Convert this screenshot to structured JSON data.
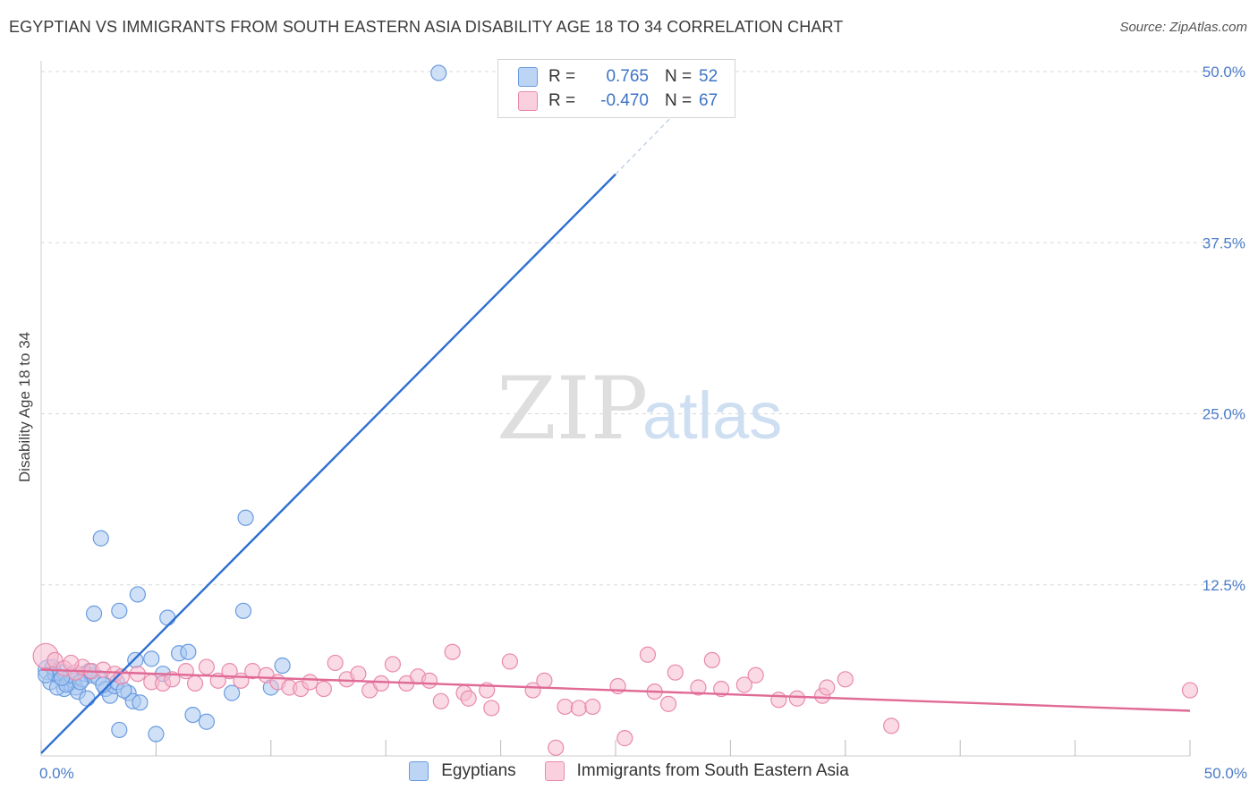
{
  "header": {
    "title": "EGYPTIAN VS IMMIGRANTS FROM SOUTH EASTERN ASIA DISABILITY AGE 18 TO 34 CORRELATION CHART",
    "source": "Source: ZipAtlas.com"
  },
  "watermark": "ZIPatlas",
  "colors": {
    "blue_fill": "#a9c8f0",
    "blue_stroke": "#6a9be0",
    "blue_line": "#2f6fd1",
    "pink_fill": "#f6bcd0",
    "pink_stroke": "#e98aab",
    "pink_line": "#e06a95",
    "grid": "#d9d9d9",
    "tick_text": "#4a7cc9"
  },
  "legend_top": {
    "rows": [
      {
        "r_label": "R =",
        "r_value": "0.765",
        "n_label": "N =",
        "n_value": "52",
        "color": "#a9c8f0",
        "border": "#6a9be0"
      },
      {
        "r_label": "R =",
        "r_value": "-0.470",
        "n_label": "N =",
        "n_value": "67",
        "color": "#f6bcd0",
        "border": "#e98aab"
      }
    ]
  },
  "legend_bottom": [
    {
      "label": "Egyptians",
      "color": "#a9c8f0",
      "border": "#6a9be0"
    },
    {
      "label": "Immigrants from South Eastern Asia",
      "color": "#f6bcd0",
      "border": "#e98aab"
    }
  ],
  "chart_data": {
    "type": "scatter",
    "title": "EGYPTIAN VS IMMIGRANTS FROM SOUTH EASTERN ASIA DISABILITY AGE 18 TO 34 CORRELATION CHART",
    "xlabel": "",
    "ylabel": "Disability Age 18 to 34",
    "xlim": [
      0,
      50
    ],
    "ylim": [
      0,
      50
    ],
    "x_tick_labels": [
      "0.0%",
      "50.0%"
    ],
    "y_tick_labels": [
      "12.5%",
      "25.0%",
      "37.5%",
      "50.0%"
    ],
    "y_ticks": [
      12.5,
      25.0,
      37.5,
      50.0
    ],
    "grid": true,
    "legend_position": "top-center",
    "series": [
      {
        "name": "Egyptians",
        "color": "#a9c8f0",
        "r": 0.765,
        "n": 52,
        "trend": {
          "x": [
            0,
            25
          ],
          "y": [
            0.2,
            42.5
          ],
          "dashed_to": [
            27.5,
            46.8
          ]
        },
        "points": [
          [
            0.3,
            6.3
          ],
          [
            0.4,
            5.4
          ],
          [
            0.6,
            6.0
          ],
          [
            0.8,
            5.8
          ],
          [
            1.0,
            6.1
          ],
          [
            1.0,
            4.9
          ],
          [
            1.2,
            5.3
          ],
          [
            1.4,
            5.5
          ],
          [
            1.5,
            5.0
          ],
          [
            1.6,
            4.7
          ],
          [
            1.8,
            5.6
          ],
          [
            1.9,
            6.0
          ],
          [
            2.0,
            4.2
          ],
          [
            2.2,
            5.9
          ],
          [
            2.5,
            5.7
          ],
          [
            2.6,
            15.9
          ],
          [
            2.8,
            4.9
          ],
          [
            3.0,
            4.4
          ],
          [
            3.2,
            5.1
          ],
          [
            3.3,
            5.4
          ],
          [
            2.3,
            10.4
          ],
          [
            3.4,
            1.9
          ],
          [
            3.4,
            10.6
          ],
          [
            3.8,
            4.6
          ],
          [
            4.0,
            4.0
          ],
          [
            4.1,
            7.0
          ],
          [
            4.2,
            11.8
          ],
          [
            4.3,
            3.9
          ],
          [
            4.8,
            7.1
          ],
          [
            5.0,
            1.6
          ],
          [
            5.3,
            6.0
          ],
          [
            5.5,
            10.1
          ],
          [
            6.0,
            7.5
          ],
          [
            6.4,
            7.6
          ],
          [
            6.6,
            3.0
          ],
          [
            7.2,
            2.5
          ],
          [
            8.3,
            4.6
          ],
          [
            8.8,
            10.6
          ],
          [
            8.9,
            17.4
          ],
          [
            10.0,
            5.0
          ],
          [
            10.5,
            6.6
          ],
          [
            17.3,
            49.9
          ],
          [
            0.5,
            6.5
          ],
          [
            0.7,
            5.0
          ],
          [
            1.1,
            5.2
          ],
          [
            1.3,
            5.9
          ],
          [
            0.9,
            5.7
          ],
          [
            2.1,
            6.2
          ],
          [
            2.7,
            5.2
          ],
          [
            3.6,
            4.8
          ],
          [
            1.7,
            5.4
          ],
          [
            0.2,
            5.9
          ]
        ]
      },
      {
        "name": "Immigrants from South Eastern Asia",
        "color": "#f6bcd0",
        "r": -0.47,
        "n": 67,
        "trend": {
          "x": [
            0,
            50
          ],
          "y": [
            6.3,
            3.3
          ]
        },
        "points": [
          [
            0.2,
            7.3
          ],
          [
            0.6,
            7.0
          ],
          [
            1.0,
            6.4
          ],
          [
            1.5,
            6.1
          ],
          [
            1.8,
            6.5
          ],
          [
            2.2,
            6.2
          ],
          [
            2.7,
            6.3
          ],
          [
            3.2,
            6.0
          ],
          [
            3.5,
            5.8
          ],
          [
            4.2,
            6.0
          ],
          [
            4.8,
            5.4
          ],
          [
            5.3,
            5.3
          ],
          [
            5.7,
            5.6
          ],
          [
            6.3,
            6.2
          ],
          [
            6.7,
            5.3
          ],
          [
            7.2,
            6.5
          ],
          [
            7.7,
            5.5
          ],
          [
            8.2,
            6.2
          ],
          [
            8.7,
            5.5
          ],
          [
            9.2,
            6.2
          ],
          [
            9.8,
            5.9
          ],
          [
            10.3,
            5.4
          ],
          [
            10.8,
            5.0
          ],
          [
            11.3,
            4.9
          ],
          [
            11.7,
            5.4
          ],
          [
            12.3,
            4.9
          ],
          [
            12.8,
            6.8
          ],
          [
            13.3,
            5.6
          ],
          [
            13.8,
            6.0
          ],
          [
            14.3,
            4.8
          ],
          [
            14.8,
            5.3
          ],
          [
            15.3,
            6.7
          ],
          [
            15.9,
            5.3
          ],
          [
            16.4,
            5.8
          ],
          [
            16.9,
            5.5
          ],
          [
            17.4,
            4.0
          ],
          [
            18.4,
            4.6
          ],
          [
            18.6,
            4.2
          ],
          [
            19.4,
            4.8
          ],
          [
            19.6,
            3.5
          ],
          [
            20.4,
            6.9
          ],
          [
            21.4,
            4.8
          ],
          [
            21.9,
            5.5
          ],
          [
            22.4,
            0.6
          ],
          [
            22.8,
            3.6
          ],
          [
            23.4,
            3.5
          ],
          [
            24.0,
            3.6
          ],
          [
            25.1,
            5.1
          ],
          [
            25.4,
            1.3
          ],
          [
            26.4,
            7.4
          ],
          [
            26.7,
            4.7
          ],
          [
            27.3,
            3.8
          ],
          [
            27.6,
            6.1
          ],
          [
            28.6,
            5.0
          ],
          [
            29.2,
            7.0
          ],
          [
            29.6,
            4.9
          ],
          [
            30.6,
            5.2
          ],
          [
            31.1,
            5.9
          ],
          [
            32.1,
            4.1
          ],
          [
            32.9,
            4.2
          ],
          [
            34.0,
            4.4
          ],
          [
            34.2,
            5.0
          ],
          [
            35.0,
            5.6
          ],
          [
            37.0,
            2.2
          ],
          [
            17.9,
            7.6
          ],
          [
            1.3,
            6.8
          ],
          [
            50.0,
            4.8
          ]
        ]
      }
    ]
  }
}
